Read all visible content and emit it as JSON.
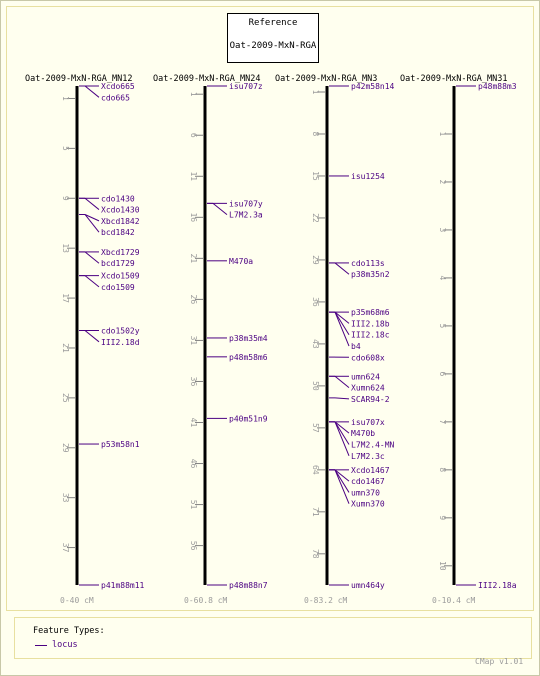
{
  "reference": {
    "label": "Reference",
    "map_set": "Oat-2009-MxN-RGA"
  },
  "maps": [
    {
      "name": "Oat-2009-MxN-RGA_MN12",
      "range_label": "0-40 cM",
      "length": 40,
      "ticks": [
        1,
        5,
        9,
        13,
        17,
        21,
        25,
        29,
        33,
        37
      ],
      "features": [
        {
          "name": "Xcdo665",
          "pos": 0
        },
        {
          "name": "cdo665",
          "pos": 0
        },
        {
          "name": "cdo1430",
          "pos": 9
        },
        {
          "name": "Xcdo1430",
          "pos": 9
        },
        {
          "name": "Xbcd1842",
          "pos": 10.3
        },
        {
          "name": "bcd1842",
          "pos": 10.3
        },
        {
          "name": "Xbcd1729",
          "pos": 13.3
        },
        {
          "name": "bcd1729",
          "pos": 13.3
        },
        {
          "name": "Xcdo1509",
          "pos": 15.2
        },
        {
          "name": "cdo1509",
          "pos": 15.2
        },
        {
          "name": "cdo1502y",
          "pos": 19.6
        },
        {
          "name": "III2.18d",
          "pos": 19.6
        },
        {
          "name": "p53m58n1",
          "pos": 28.7
        },
        {
          "name": "p41m88m11",
          "pos": 40
        }
      ]
    },
    {
      "name": "Oat-2009-MxN-RGA_MN24",
      "range_label": "0-60.8 cM",
      "length": 60.8,
      "ticks": [
        1,
        6,
        11,
        16,
        21,
        26,
        31,
        36,
        41,
        46,
        51,
        56
      ],
      "features": [
        {
          "name": "isu707z",
          "pos": 0
        },
        {
          "name": "isu707y",
          "pos": 14.3
        },
        {
          "name": "L7M2.3a",
          "pos": 14.3
        },
        {
          "name": "M470a",
          "pos": 21.3
        },
        {
          "name": "p38m35m4",
          "pos": 30.7
        },
        {
          "name": "p48m58m6",
          "pos": 33
        },
        {
          "name": "p40m51n9",
          "pos": 40.5
        },
        {
          "name": "p48m88n7",
          "pos": 60.8
        }
      ]
    },
    {
      "name": "Oat-2009-MxN-RGA_MN3",
      "range_label": "0-83.2 cM",
      "length": 83.2,
      "ticks": [
        1,
        8,
        15,
        22,
        29,
        36,
        43,
        50,
        57,
        64,
        71,
        78
      ],
      "features": [
        {
          "name": "p42m58n14",
          "pos": 0
        },
        {
          "name": "isu1254",
          "pos": 15
        },
        {
          "name": "cdo113s",
          "pos": 29.5
        },
        {
          "name": "p38m35n2",
          "pos": 29.5
        },
        {
          "name": "p35m68m6",
          "pos": 37.7
        },
        {
          "name": "III2.18b",
          "pos": 37.7
        },
        {
          "name": "III2.18c",
          "pos": 37.7
        },
        {
          "name": "b4",
          "pos": 37.7
        },
        {
          "name": "cdo608x",
          "pos": 45.2
        },
        {
          "name": "umn624",
          "pos": 48.4
        },
        {
          "name": "Xumn624",
          "pos": 48.4
        },
        {
          "name": "SCAR94-2",
          "pos": 52
        },
        {
          "name": "isu707x",
          "pos": 56
        },
        {
          "name": "M470b",
          "pos": 56
        },
        {
          "name": "L7M2.4-MN",
          "pos": 56
        },
        {
          "name": "L7M2.3c",
          "pos": 56
        },
        {
          "name": "Xcdo1467",
          "pos": 64
        },
        {
          "name": "cdo1467",
          "pos": 64
        },
        {
          "name": "umn370",
          "pos": 64
        },
        {
          "name": "Xumn370",
          "pos": 64
        },
        {
          "name": "umn464y",
          "pos": 83.2
        }
      ]
    },
    {
      "name": "Oat-2009-MxN-RGA_MN31",
      "range_label": "0-10.4 cM",
      "length": 10.4,
      "ticks": [
        1,
        2,
        3,
        4,
        5,
        6,
        7,
        8,
        9,
        10
      ],
      "features": [
        {
          "name": "p48m88m3",
          "pos": 0
        },
        {
          "name": "III2.18a",
          "pos": 10.4
        }
      ]
    }
  ],
  "legend": {
    "title": "Feature Types:",
    "item": "locus"
  },
  "version": "CMap v1.01",
  "colors": {
    "feature": "#4b0082",
    "axis": "#000000",
    "tick": "#808080",
    "tick_label": "#9c9c9c"
  }
}
